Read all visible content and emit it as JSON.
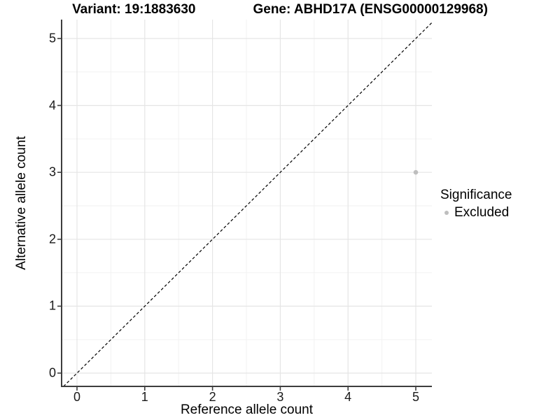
{
  "chart_data": {
    "type": "scatter",
    "title_variant": "Variant: 19:1883630",
    "title_gene": "Gene: ABHD17A (ENSG00000129968)",
    "xlabel": "Reference allele count",
    "ylabel": "Alternative allele count",
    "x_ticks": [
      0,
      1,
      2,
      3,
      4,
      5
    ],
    "y_ticks": [
      0,
      1,
      2,
      3,
      4,
      5
    ],
    "xlim": [
      -0.23,
      5.24
    ],
    "ylim": [
      -0.2,
      5.28
    ],
    "grid": {
      "major": true,
      "minor": true
    },
    "identity_line": {
      "slope": 1,
      "intercept": 0,
      "style": "dashed",
      "color": "#000000"
    },
    "series": [
      {
        "name": "Excluded",
        "color": "#bebebe",
        "points": [
          [
            5,
            3
          ]
        ]
      }
    ],
    "legend": {
      "title": "Significance",
      "position": "right",
      "items": [
        {
          "label": "Excluded",
          "color": "#bebebe"
        }
      ]
    },
    "colors": {
      "background": "#ffffff",
      "panel_background": "#ffffff",
      "grid_major": "#e5e5e5",
      "grid_minor": "#f2f2f2",
      "axis_line": "#3d3d3d",
      "tick_text": "#1a1a1a",
      "title_text": "#000000",
      "point": "#bebebe"
    }
  }
}
